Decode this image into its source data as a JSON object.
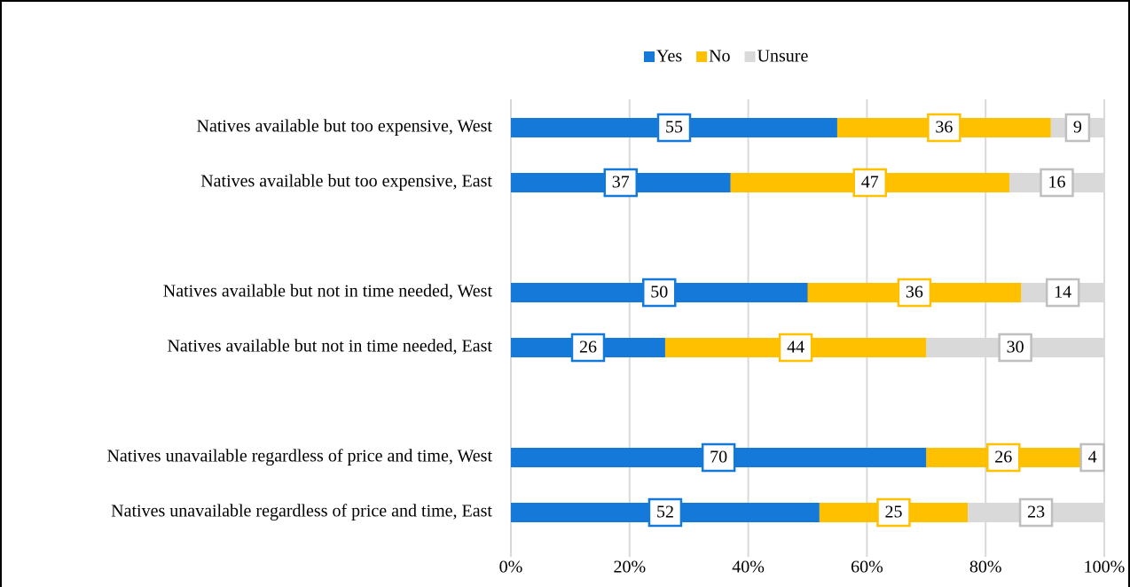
{
  "chart_data": {
    "type": "stacked-bar-horizontal",
    "categories": [
      "Natives available but too expensive, West",
      "Natives available but too expensive, East",
      null,
      "Natives available but not in time needed, West",
      "Natives available but not in time needed, East",
      null,
      "Natives unavailable regardless of price and time, West",
      "Natives unavailable regardless of price and time, East"
    ],
    "series": [
      {
        "name": "Yes",
        "color": "#1479d8",
        "values": [
          55,
          37,
          null,
          50,
          26,
          null,
          70,
          52
        ]
      },
      {
        "name": "No",
        "color": "#ffc000",
        "values": [
          36,
          47,
          null,
          36,
          44,
          null,
          26,
          25
        ]
      },
      {
        "name": "Unsure",
        "color": "#d9d9d9",
        "values": [
          9,
          16,
          null,
          14,
          30,
          null,
          4,
          23
        ]
      }
    ],
    "xlim": [
      0,
      100
    ],
    "xticks": [
      {
        "value": 0,
        "label": "0%"
      },
      {
        "value": 20,
        "label": "20%"
      },
      {
        "value": 40,
        "label": "40%"
      },
      {
        "value": 60,
        "label": "60%"
      },
      {
        "value": 80,
        "label": "80%"
      },
      {
        "value": 100,
        "label": "100%"
      }
    ],
    "grid": true,
    "legend": "top"
  }
}
